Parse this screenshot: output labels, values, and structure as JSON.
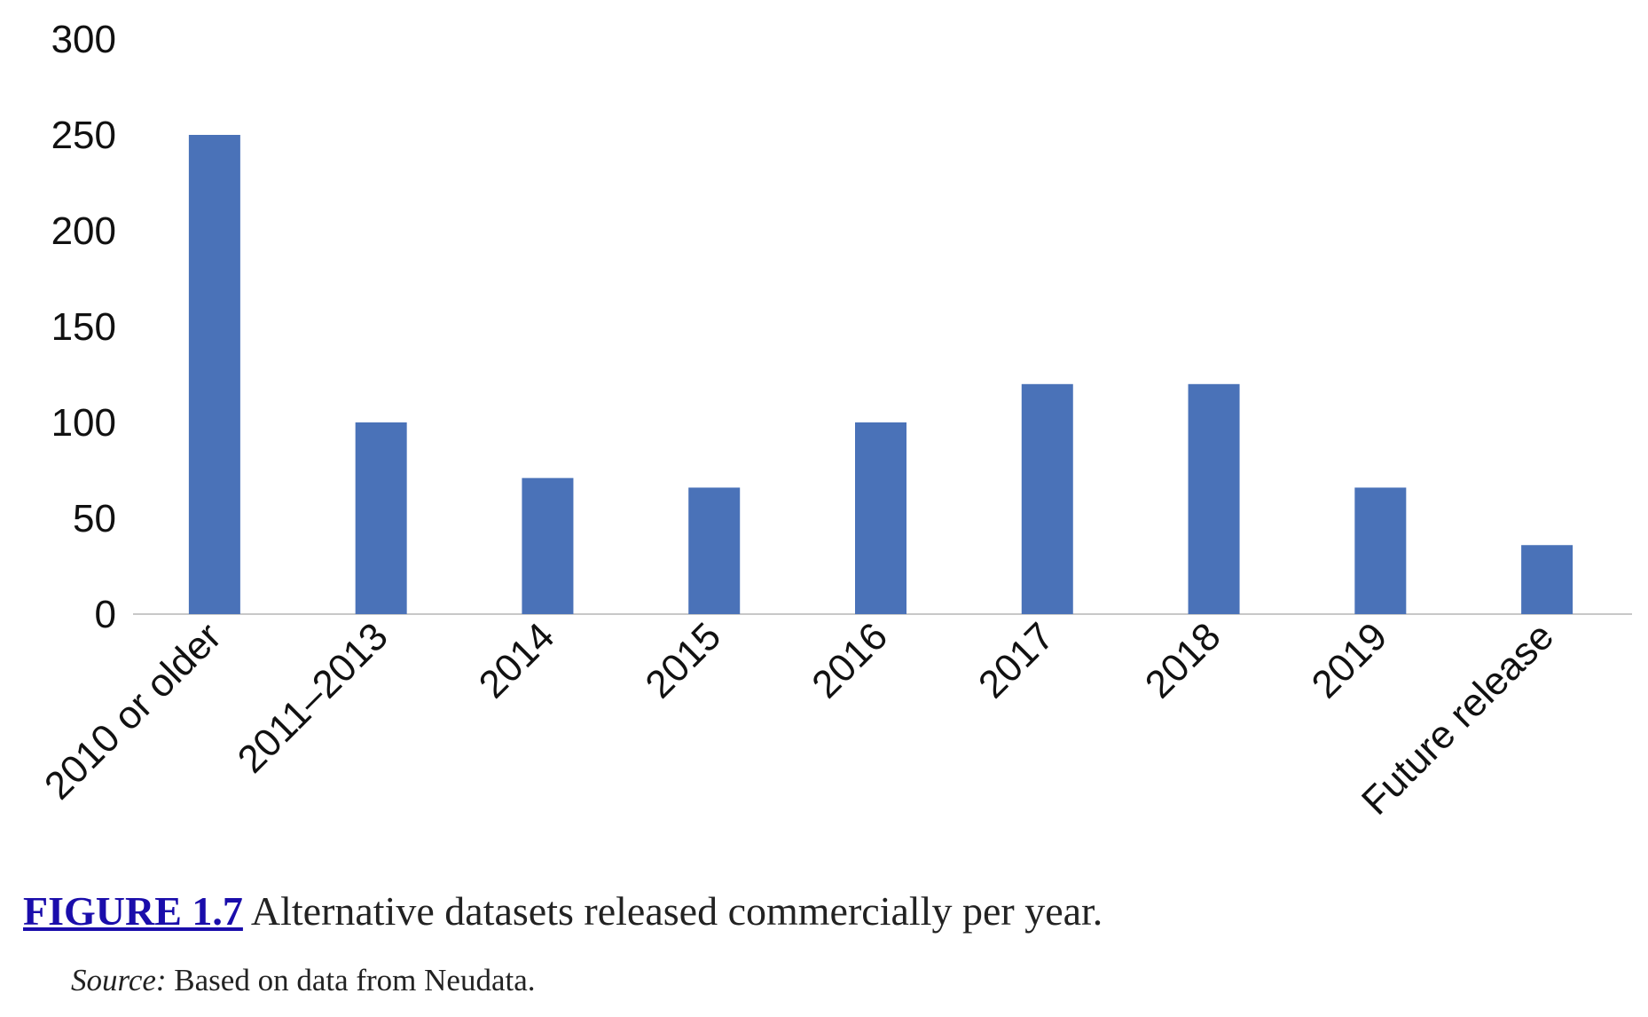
{
  "caption": {
    "figure_label": "FIGURE 1.7",
    "text": "Alternative datasets released commercially per year."
  },
  "source": {
    "label": "Source:",
    "text": "Based on data from Neudata."
  },
  "chart_data": {
    "type": "bar",
    "title": "",
    "xlabel": "",
    "ylabel": "",
    "categories": [
      "2010 or older",
      "2011–2013",
      "2014",
      "2015",
      "2016",
      "2017",
      "2018",
      "2019",
      "Future release"
    ],
    "values": [
      250,
      100,
      71,
      66,
      100,
      120,
      120,
      66,
      36
    ],
    "ylim": [
      0,
      300
    ],
    "yticks": [
      "0",
      "50",
      "100",
      "150",
      "200",
      "250",
      "300"
    ],
    "bar_color": "#4a72b8",
    "axis_color": "#c8c8c8",
    "grid": false,
    "legend": "none"
  }
}
